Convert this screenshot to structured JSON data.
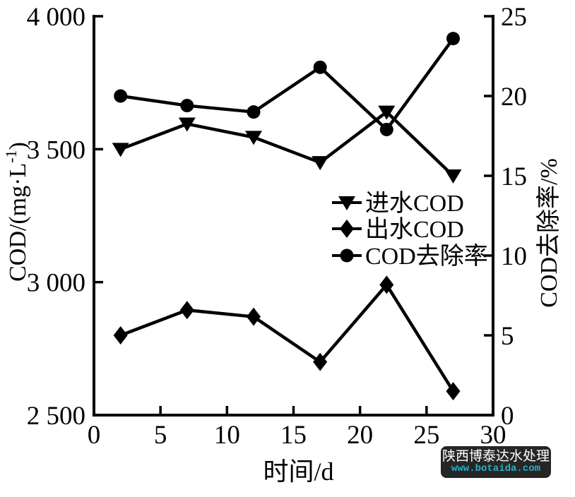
{
  "chart_data": {
    "type": "line",
    "x_values": [
      2,
      7,
      12,
      17,
      22,
      27
    ],
    "series": [
      {
        "name": "进水COD",
        "axis": "left",
        "marker": "triangle-down",
        "values": [
          3500,
          3595,
          3545,
          3450,
          3640,
          3400
        ]
      },
      {
        "name": "出水COD",
        "axis": "left",
        "marker": "diamond",
        "values": [
          2800,
          2895,
          2870,
          2700,
          2990,
          2590
        ]
      },
      {
        "name": "COD去除率",
        "axis": "right",
        "marker": "circle",
        "values": [
          20.0,
          19.4,
          19.0,
          21.8,
          17.9,
          23.6
        ]
      }
    ],
    "xlabel": "时间/d",
    "ylabel_left_prefix": "COD/(mg·L",
    "ylabel_left_sup": "-1",
    "ylabel_left_suffix": ")",
    "ylabel_right": "COD去除率/%",
    "xlim": [
      0,
      30
    ],
    "ylim_left": [
      2500,
      4000
    ],
    "ylim_right": [
      0,
      25
    ],
    "xticks": [
      {
        "value": 0,
        "label": "0"
      },
      {
        "value": 5,
        "label": "5"
      },
      {
        "value": 10,
        "label": "10"
      },
      {
        "value": 15,
        "label": "15"
      },
      {
        "value": 20,
        "label": "20"
      },
      {
        "value": 25,
        "label": "25"
      },
      {
        "value": 30,
        "label": "30"
      }
    ],
    "yticks_left": [
      {
        "value": 4000,
        "label": "4 000"
      },
      {
        "value": 3500,
        "label": "3 500"
      },
      {
        "value": 3000,
        "label": "3 000"
      },
      {
        "value": 2500,
        "label": "2 500"
      }
    ],
    "yticks_right": [
      {
        "value": 25,
        "label": "25"
      },
      {
        "value": 20,
        "label": "20"
      },
      {
        "value": 15,
        "label": "15"
      },
      {
        "value": 10,
        "label": "10"
      },
      {
        "value": 5,
        "label": "5"
      },
      {
        "value": 0,
        "label": "0"
      }
    ],
    "grid": false,
    "legend_position": "center-right-inside",
    "line_color": "#000000"
  },
  "watermark": {
    "line1": "陕西博泰达水处理",
    "line2": "www.botaida.com",
    "bg_color": "#262626",
    "line1_color": "#ffffff",
    "line2_color": "#29b2c2"
  }
}
